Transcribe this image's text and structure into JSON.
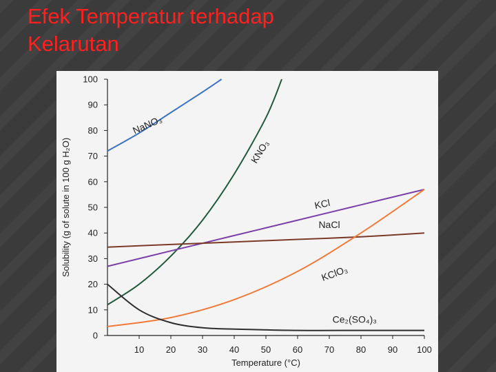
{
  "slide": {
    "title_line1": "Efek Temperatur terhadap",
    "title_line2": "Kelarutan"
  },
  "chart_data": {
    "type": "line",
    "xlabel": "Temperature (°C)",
    "ylabel": "Solubility (g of solute in 100 g H₂O)",
    "xlim": [
      0,
      100
    ],
    "ylim": [
      0,
      100
    ],
    "x_ticks": [
      10,
      20,
      30,
      40,
      50,
      60,
      70,
      80,
      90,
      100
    ],
    "y_ticks": [
      0,
      10,
      20,
      30,
      40,
      50,
      60,
      70,
      80,
      90,
      100
    ],
    "grid": false,
    "series": [
      {
        "name": "NaNO₃",
        "color": "#3a73c4",
        "x": [
          0,
          10,
          20,
          30,
          36
        ],
        "y": [
          72,
          79,
          87,
          95,
          100
        ]
      },
      {
        "name": "KNO₃",
        "color": "#1f5a3a",
        "x": [
          0,
          10,
          20,
          30,
          40,
          50,
          55
        ],
        "y": [
          12,
          20,
          31,
          45,
          63,
          85,
          100
        ]
      },
      {
        "name": "KCl",
        "color": "#7a3fa8",
        "x": [
          0,
          20,
          40,
          60,
          80,
          100
        ],
        "y": [
          27,
          33,
          39,
          45,
          51,
          57
        ]
      },
      {
        "name": "NaCl",
        "color": "#7a3a28",
        "x": [
          0,
          20,
          40,
          60,
          80,
          100
        ],
        "y": [
          34.5,
          35.5,
          36.5,
          37.5,
          38.5,
          40
        ]
      },
      {
        "name": "KClO₃",
        "color": "#f07a3a",
        "x": [
          0,
          20,
          40,
          60,
          80,
          100
        ],
        "y": [
          3.5,
          7,
          14,
          25,
          40,
          57
        ]
      },
      {
        "name": "Ce₂(SO₄)₃",
        "color": "#2d2d2d",
        "x": [
          0,
          10,
          20,
          30,
          40,
          60,
          80,
          100
        ],
        "y": [
          20,
          10,
          5,
          3,
          2.5,
          2,
          2,
          2
        ]
      }
    ]
  }
}
